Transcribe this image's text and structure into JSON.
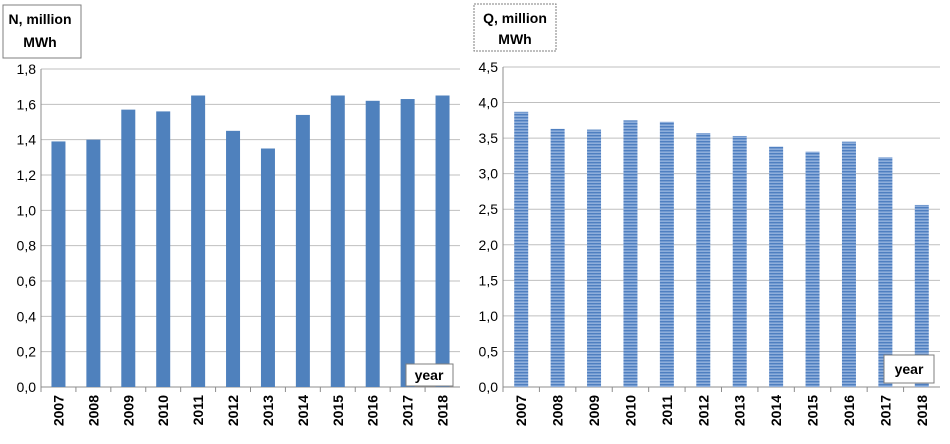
{
  "chart_data": [
    {
      "type": "bar",
      "ylabel": "N, million MWh",
      "ylabel_lines": [
        "N, million",
        "MWh"
      ],
      "xlabel": "year",
      "categories": [
        "2007",
        "2008",
        "2009",
        "2010",
        "2011",
        "2012",
        "2013",
        "2014",
        "2015",
        "2016",
        "2017",
        "2018"
      ],
      "values": [
        1.39,
        1.4,
        1.57,
        1.56,
        1.65,
        1.45,
        1.35,
        1.54,
        1.65,
        1.62,
        1.63,
        1.65
      ],
      "ylim": [
        0,
        1.8
      ],
      "yticks": [
        "0,0",
        "0,2",
        "0,4",
        "0,6",
        "0,8",
        "1,0",
        "1,2",
        "1,4",
        "1,6",
        "1,8"
      ],
      "grid": true,
      "bar_color": "#4f81bd",
      "bar_pattern": "solid"
    },
    {
      "type": "bar",
      "ylabel": "Q, million MWh",
      "ylabel_lines": [
        "Q, million",
        "MWh"
      ],
      "xlabel": "year",
      "categories": [
        "2007",
        "2008",
        "2009",
        "2010",
        "2011",
        "2012",
        "2013",
        "2014",
        "2015",
        "2016",
        "2017",
        "2018"
      ],
      "values": [
        3.87,
        3.63,
        3.62,
        3.75,
        3.73,
        3.57,
        3.53,
        3.38,
        3.31,
        3.45,
        3.23,
        2.56
      ],
      "ylim": [
        0,
        4.5
      ],
      "yticks": [
        "0,0",
        "0,5",
        "1,0",
        "1,5",
        "2,0",
        "2,5",
        "3,0",
        "3,5",
        "4,0",
        "4,5"
      ],
      "grid": true,
      "bar_color": "#6f96cc",
      "bar_pattern": "horizontal-stripes"
    }
  ]
}
